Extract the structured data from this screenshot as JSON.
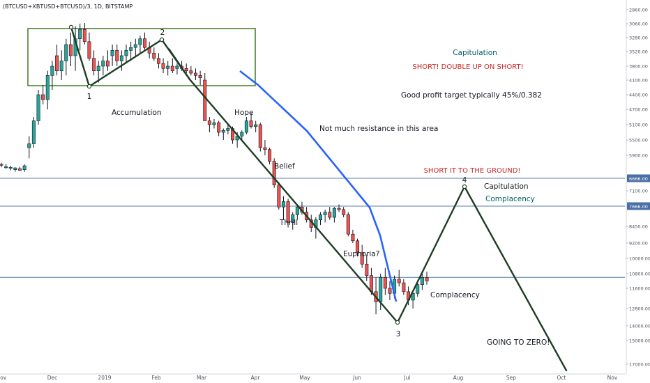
{
  "symbol_label": "(BTCUSD+XBTUSD+BTCUSD)/3, 1D, BITSTAMP",
  "colors": {
    "up": "#26a69a",
    "down": "#ef5350",
    "candle_body": "#131722",
    "pattern": "#1e3d25",
    "trend_blue": "#2962ff",
    "box": "#3b7a1e",
    "hline": "#4a6fa5",
    "red_text": "#c62828",
    "teal_text": "#006064"
  },
  "chart_data": {
    "type": "candlestick",
    "title": "",
    "x_ticks": [
      "Nov",
      "Dec",
      "2019",
      "Feb",
      "Mar",
      "Apr",
      "May",
      "Jun",
      "Jul",
      "Aug",
      "Sep",
      "Oct",
      "Nov"
    ],
    "y_axis": {
      "scale": "inverted",
      "ticks": [
        2860,
        3060,
        3280,
        3520,
        3800,
        4100,
        4400,
        4700,
        5100,
        5500,
        5900,
        6666,
        7100,
        7666,
        8450,
        9200,
        10000,
        10800,
        11600,
        12800,
        14000,
        15000,
        17000
      ],
      "tick_labels": [
        "2860.00",
        "3060.00",
        "3280.00",
        "3520.00",
        "3800.00",
        "4100.00",
        "4400.00",
        "4700.00",
        "5100.00",
        "5500.00",
        "5900.00",
        "6666.00",
        "7100.00",
        "7666.00",
        "8450.00",
        "9200.00",
        "10000.00",
        "10800.00",
        "11600.00",
        "12800.00",
        "14000.00",
        "15000.00",
        "17000.00"
      ],
      "highlighted": [
        {
          "value": 6666,
          "label": "6666.00"
        },
        {
          "value": 7666,
          "label": "7666.00"
        }
      ]
    },
    "horizontal_lines": [
      6666,
      7666,
      11000
    ],
    "candles_ohlc": [
      [
        6200,
        6300,
        6150,
        6220
      ],
      [
        6300,
        6350,
        6180,
        6280
      ],
      [
        6330,
        6400,
        6250,
        6300
      ],
      [
        6380,
        6450,
        6300,
        6320
      ],
      [
        6350,
        6420,
        6280,
        6400
      ],
      [
        6380,
        6450,
        6200,
        6250
      ],
      [
        5700,
        6000,
        5400,
        5600
      ],
      [
        5600,
        5700,
        4900,
        5000
      ],
      [
        5000,
        5100,
        4300,
        4400
      ],
      [
        4400,
        4600,
        4200,
        4500
      ],
      [
        4500,
        4700,
        3900,
        4000
      ],
      [
        4000,
        4300,
        3700,
        3800
      ],
      [
        3600,
        4000,
        3400,
        3900
      ],
      [
        3900,
        4100,
        3500,
        3700
      ],
      [
        3700,
        4000,
        3300,
        3400
      ],
      [
        3400,
        3800,
        3200,
        3600
      ],
      [
        3600,
        3900,
        3100,
        3300
      ],
      [
        3300,
        3500,
        3060,
        3150
      ],
      [
        3150,
        3400,
        3050,
        3350
      ],
      [
        3350,
        3700,
        3200,
        3650
      ],
      [
        3650,
        4000,
        3500,
        3900
      ],
      [
        3900,
        4150,
        3700,
        3800
      ],
      [
        3800,
        4000,
        3600,
        3700
      ],
      [
        3700,
        3900,
        3500,
        3800
      ],
      [
        3600,
        3800,
        3400,
        3500
      ],
      [
        3500,
        3800,
        3400,
        3700
      ],
      [
        3700,
        3900,
        3500,
        3600
      ],
      [
        3600,
        3750,
        3400,
        3500
      ],
      [
        3500,
        3700,
        3350,
        3450
      ],
      [
        3450,
        3600,
        3300,
        3400
      ],
      [
        3400,
        3550,
        3250,
        3300
      ],
      [
        3300,
        3500,
        3200,
        3450
      ],
      [
        3450,
        3650,
        3350,
        3550
      ],
      [
        3550,
        3700,
        3450,
        3650
      ],
      [
        3650,
        3850,
        3550,
        3750
      ],
      [
        3750,
        3950,
        3650,
        3850
      ],
      [
        3850,
        4000,
        3700,
        3800
      ],
      [
        3800,
        3950,
        3650,
        3900
      ],
      [
        3850,
        3980,
        3750,
        3800
      ],
      [
        3800,
        3900,
        3700,
        3850
      ],
      [
        3850,
        3950,
        3750,
        3900
      ],
      [
        3900,
        4000,
        3800,
        3950
      ],
      [
        3950,
        4100,
        3850,
        4000
      ],
      [
        4000,
        4200,
        3900,
        4050
      ],
      [
        4100,
        4300,
        3950,
        5000
      ],
      [
        5000,
        5300,
        4900,
        5100
      ],
      [
        5100,
        5200,
        4950,
        5050
      ],
      [
        5050,
        5400,
        5000,
        5300
      ],
      [
        5300,
        5500,
        5200,
        5250
      ],
      [
        5250,
        5350,
        5100,
        5200
      ],
      [
        5200,
        5600,
        5150,
        5500
      ],
      [
        5500,
        5700,
        5300,
        5400
      ],
      [
        5400,
        5500,
        5250,
        5300
      ],
      [
        5300,
        5350,
        4900,
        5000
      ],
      [
        5000,
        5200,
        4800,
        5150
      ],
      [
        5150,
        5300,
        5000,
        5100
      ],
      [
        5100,
        5800,
        5050,
        5700
      ],
      [
        5700,
        5900,
        5500,
        5750
      ],
      [
        5750,
        6200,
        5700,
        6100
      ],
      [
        6100,
        7000,
        6000,
        6900
      ],
      [
        6900,
        7800,
        6800,
        7700
      ],
      [
        7700,
        8200,
        7300,
        7500
      ],
      [
        7500,
        8500,
        7400,
        8300
      ],
      [
        8300,
        8600,
        7900,
        8000
      ],
      [
        8000,
        8200,
        7600,
        7700
      ],
      [
        7700,
        8000,
        7500,
        7900
      ],
      [
        7900,
        8300,
        7700,
        8200
      ],
      [
        8200,
        8700,
        8000,
        8500
      ],
      [
        8500,
        9000,
        8100,
        8200
      ],
      [
        8200,
        8400,
        7900,
        8000
      ],
      [
        8000,
        8300,
        7800,
        7900
      ],
      [
        7900,
        8200,
        7700,
        8100
      ],
      [
        8100,
        8300,
        7700,
        7750
      ],
      [
        7750,
        7900,
        7600,
        7800
      ],
      [
        7800,
        8100,
        7700,
        8000
      ],
      [
        8000,
        8900,
        7900,
        8800
      ],
      [
        8800,
        9200,
        8600,
        9100
      ],
      [
        9100,
        9900,
        9000,
        9700
      ],
      [
        9700,
        10500,
        9300,
        10300
      ],
      [
        10300,
        11200,
        9800,
        10900
      ],
      [
        10900,
        12000,
        10500,
        11800
      ],
      [
        11800,
        13200,
        11000,
        12400
      ],
      [
        12400,
        12900,
        10800,
        11000
      ],
      [
        11000,
        12000,
        10500,
        11600
      ],
      [
        11600,
        12300,
        11200,
        11900
      ],
      [
        11900,
        12200,
        10900,
        11100
      ],
      [
        11100,
        11500,
        10600,
        11300
      ],
      [
        11300,
        12000,
        11100,
        11800
      ],
      [
        11800,
        12600,
        11500,
        12300
      ],
      [
        12300,
        12800,
        11700,
        11900
      ],
      [
        11900,
        12100,
        11300,
        11400
      ],
      [
        11400,
        11700,
        10800,
        11000
      ],
      [
        11000,
        11400,
        10700,
        11200
      ]
    ],
    "annotations": {
      "labels": [
        "Accumulation",
        "Hope",
        "Belief",
        "Thrill",
        "Euphoria?",
        "Complacency",
        "Not much resistance in this area",
        "Capitulation",
        "Complacency",
        "GOING TO ZERO!"
      ],
      "header": [
        "Capitulation",
        "SHORT! DOUBLE UP ON SHORT!",
        "Good profit target typically 45%/0.382"
      ],
      "red_note": "SHORT IT TO THE GROUND!",
      "points": [
        "1",
        "2",
        "3",
        "4"
      ]
    },
    "pattern_points": [
      {
        "date": "Dec",
        "price": 3060
      },
      {
        "date": "Jan",
        "price": 4100
      },
      {
        "date": "Feb",
        "price": 3400
      },
      {
        "date": "Mar",
        "price": 4100
      },
      {
        "date": "Jun",
        "price": 13800
      },
      {
        "date": "Aug",
        "price": 7100
      },
      {
        "date": "Oct",
        "price": 17000
      }
    ],
    "trend_line": [
      {
        "date": "Mar",
        "price": 3900
      },
      {
        "date": "Jun",
        "price": 13000
      }
    ],
    "grid": false
  }
}
